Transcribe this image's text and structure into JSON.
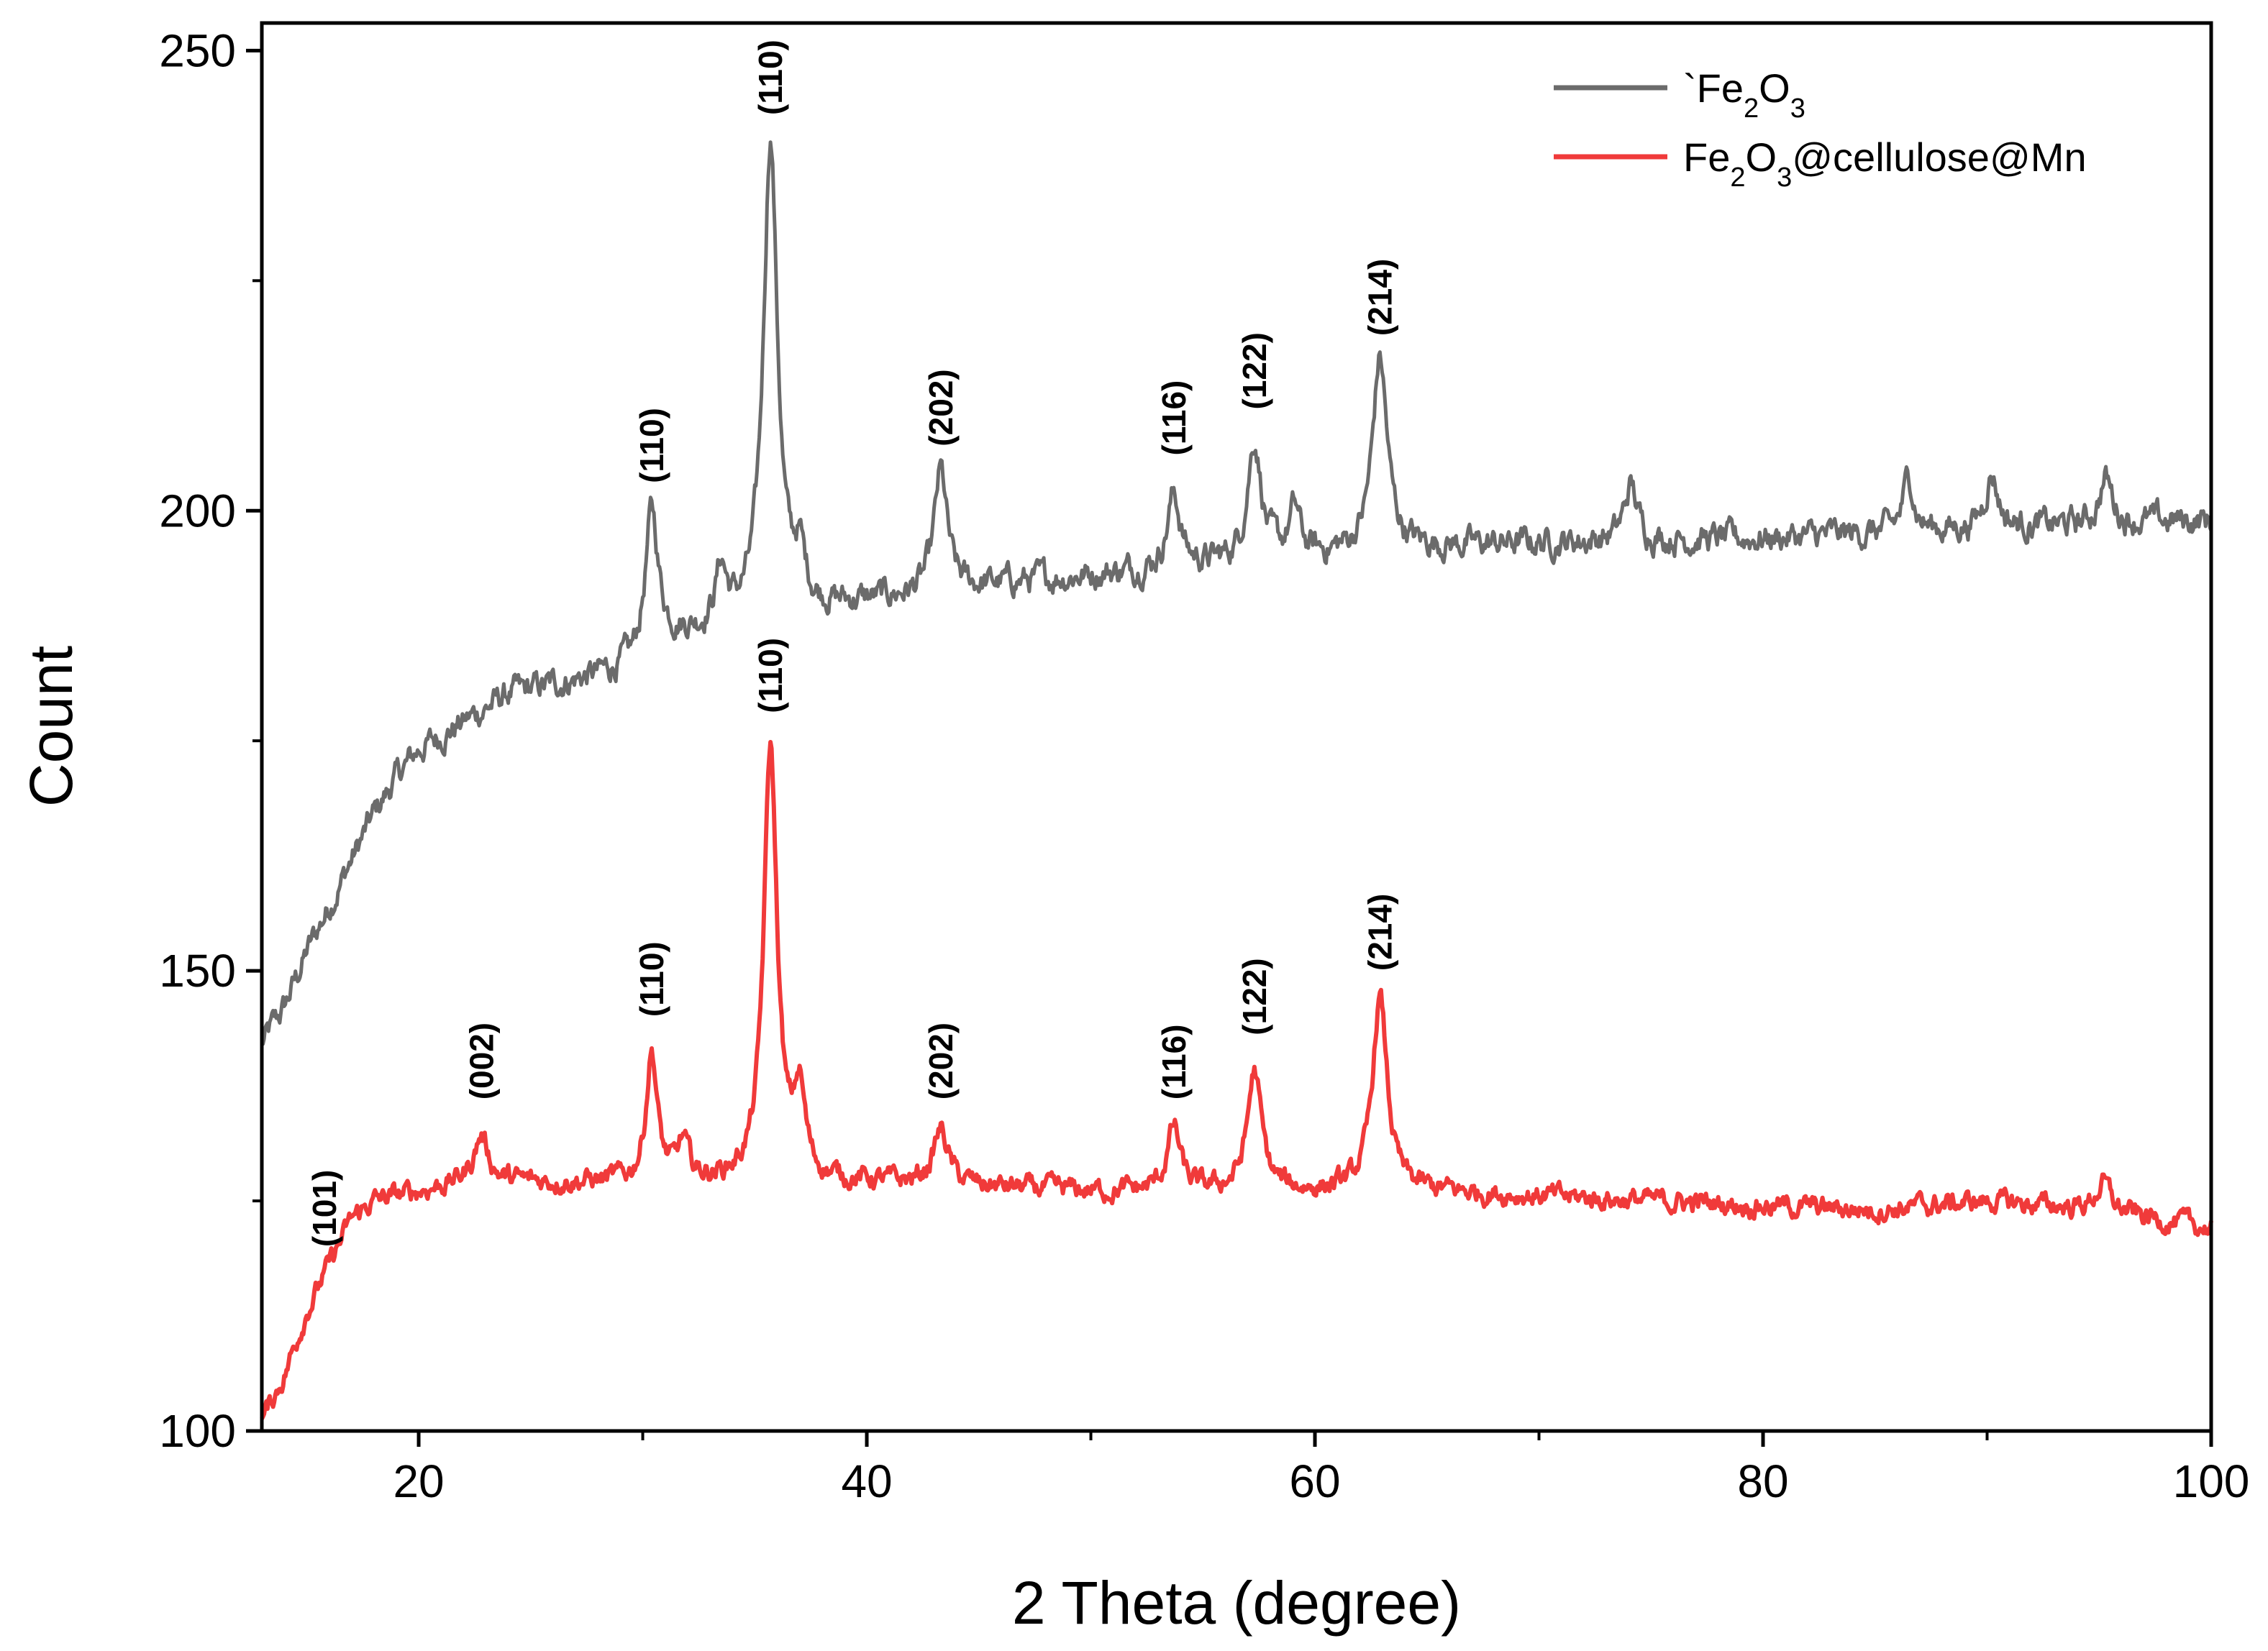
{
  "chart_data": {
    "type": "line",
    "title": "",
    "xlabel": "2 Theta (degree)",
    "ylabel": "Count",
    "xlim": [
      13,
      100
    ],
    "ylim": [
      100,
      253
    ],
    "x_ticks": [
      20,
      40,
      60,
      80,
      100
    ],
    "x_tick_labels": [
      "20",
      "40",
      "60",
      "80",
      "100"
    ],
    "y_ticks": [
      100,
      150,
      200,
      250
    ],
    "y_tick_labels": [
      "100",
      "150",
      "200",
      "250"
    ],
    "legend_position": "top-right",
    "series": [
      {
        "name": "`Fe2O3",
        "legend_main": "`Fe",
        "legend_sub1": "2",
        "legend_mid": "O",
        "legend_sub2": "3",
        "legend_tail": "",
        "color": "#6b6b6b",
        "baseline": [
          [
            13,
            142
          ],
          [
            14,
            146
          ],
          [
            15,
            152
          ],
          [
            16,
            157
          ],
          [
            17,
            162
          ],
          [
            18,
            167
          ],
          [
            19,
            171
          ],
          [
            20,
            174
          ],
          [
            22,
            177
          ],
          [
            24,
            180
          ],
          [
            26,
            181
          ],
          [
            28,
            182
          ],
          [
            29.5,
            183
          ],
          [
            31,
            186
          ],
          [
            33,
            187
          ],
          [
            35,
            188
          ],
          [
            37,
            189
          ],
          [
            40,
            190
          ],
          [
            43,
            191
          ],
          [
            46,
            192
          ],
          [
            50,
            193
          ],
          [
            55,
            194
          ],
          [
            60,
            195
          ],
          [
            65,
            196
          ],
          [
            70,
            196.5
          ],
          [
            80,
            197
          ],
          [
            90,
            198
          ],
          [
            100,
            199
          ]
        ],
        "peaks": [
          [
            30.4,
            15,
            0.35
          ],
          [
            33.5,
            6,
            0.3
          ],
          [
            35.7,
            52,
            0.38
          ],
          [
            37,
            5,
            0.3
          ],
          [
            43.3,
            13,
            0.35
          ],
          [
            53.7,
            8,
            0.35
          ],
          [
            57.3,
            13,
            0.38
          ],
          [
            59.1,
            5,
            0.3
          ],
          [
            62.9,
            21,
            0.4
          ],
          [
            74.1,
            6,
            0.35
          ],
          [
            86.5,
            6,
            0.3
          ],
          [
            90.2,
            6,
            0.35
          ],
          [
            95.3,
            5,
            0.35
          ]
        ],
        "noise": 2.2,
        "peak_labels": [
          {
            "x": 30.4,
            "y": 203,
            "text": "(110)"
          },
          {
            "x": 35.7,
            "y": 243,
            "text": "(110)"
          },
          {
            "x": 43.3,
            "y": 207,
            "text": "(202)"
          },
          {
            "x": 53.7,
            "y": 206,
            "text": "(116)"
          },
          {
            "x": 57.3,
            "y": 211,
            "text": "(122)"
          },
          {
            "x": 62.9,
            "y": 219,
            "text": "(214)"
          }
        ]
      },
      {
        "name": "Fe2O3@cellulose@Mn",
        "legend_main": "Fe",
        "legend_sub1": "2",
        "legend_mid": "O",
        "legend_sub2": "3",
        "legend_tail": "@cellulose@Mn",
        "color": "#f03a3a",
        "baseline": [
          [
            13,
            101
          ],
          [
            14,
            106
          ],
          [
            15,
            113
          ],
          [
            16,
            118
          ],
          [
            17,
            123
          ],
          [
            18,
            125
          ],
          [
            20,
            126
          ],
          [
            22,
            127
          ],
          [
            25,
            127
          ],
          [
            28,
            127
          ],
          [
            30,
            127
          ],
          [
            35,
            127
          ],
          [
            40,
            127
          ],
          [
            45,
            126.5
          ],
          [
            50,
            126
          ],
          [
            55,
            126
          ],
          [
            60,
            126
          ],
          [
            65,
            126
          ],
          [
            70,
            125.5
          ],
          [
            75,
            125
          ],
          [
            80,
            124.5
          ],
          [
            85,
            124
          ],
          [
            90,
            125
          ],
          [
            95,
            124
          ],
          [
            100,
            122
          ]
        ],
        "peaks": [
          [
            22.8,
            5,
            0.4
          ],
          [
            30.4,
            14,
            0.3
          ],
          [
            31.8,
            4,
            0.3
          ],
          [
            35.7,
            47,
            0.36
          ],
          [
            37,
            9,
            0.3
          ],
          [
            43.3,
            6,
            0.4
          ],
          [
            53.7,
            7,
            0.35
          ],
          [
            57.3,
            13,
            0.38
          ],
          [
            62.9,
            21,
            0.4
          ],
          [
            95.2,
            3,
            0.4
          ]
        ],
        "noise": 1.6,
        "peak_labels": [
          {
            "x": 15.8,
            "y": 120,
            "text": "(101)"
          },
          {
            "x": 22.8,
            "y": 136,
            "text": "(002)"
          },
          {
            "x": 30.4,
            "y": 145,
            "text": "(110)"
          },
          {
            "x": 35.7,
            "y": 178,
            "text": "(110)"
          },
          {
            "x": 43.3,
            "y": 136,
            "text": "(202)"
          },
          {
            "x": 53.7,
            "y": 136,
            "text": "(116)"
          },
          {
            "x": 57.3,
            "y": 143,
            "text": "(122)"
          },
          {
            "x": 62.9,
            "y": 150,
            "text": "(214)"
          }
        ]
      }
    ]
  }
}
